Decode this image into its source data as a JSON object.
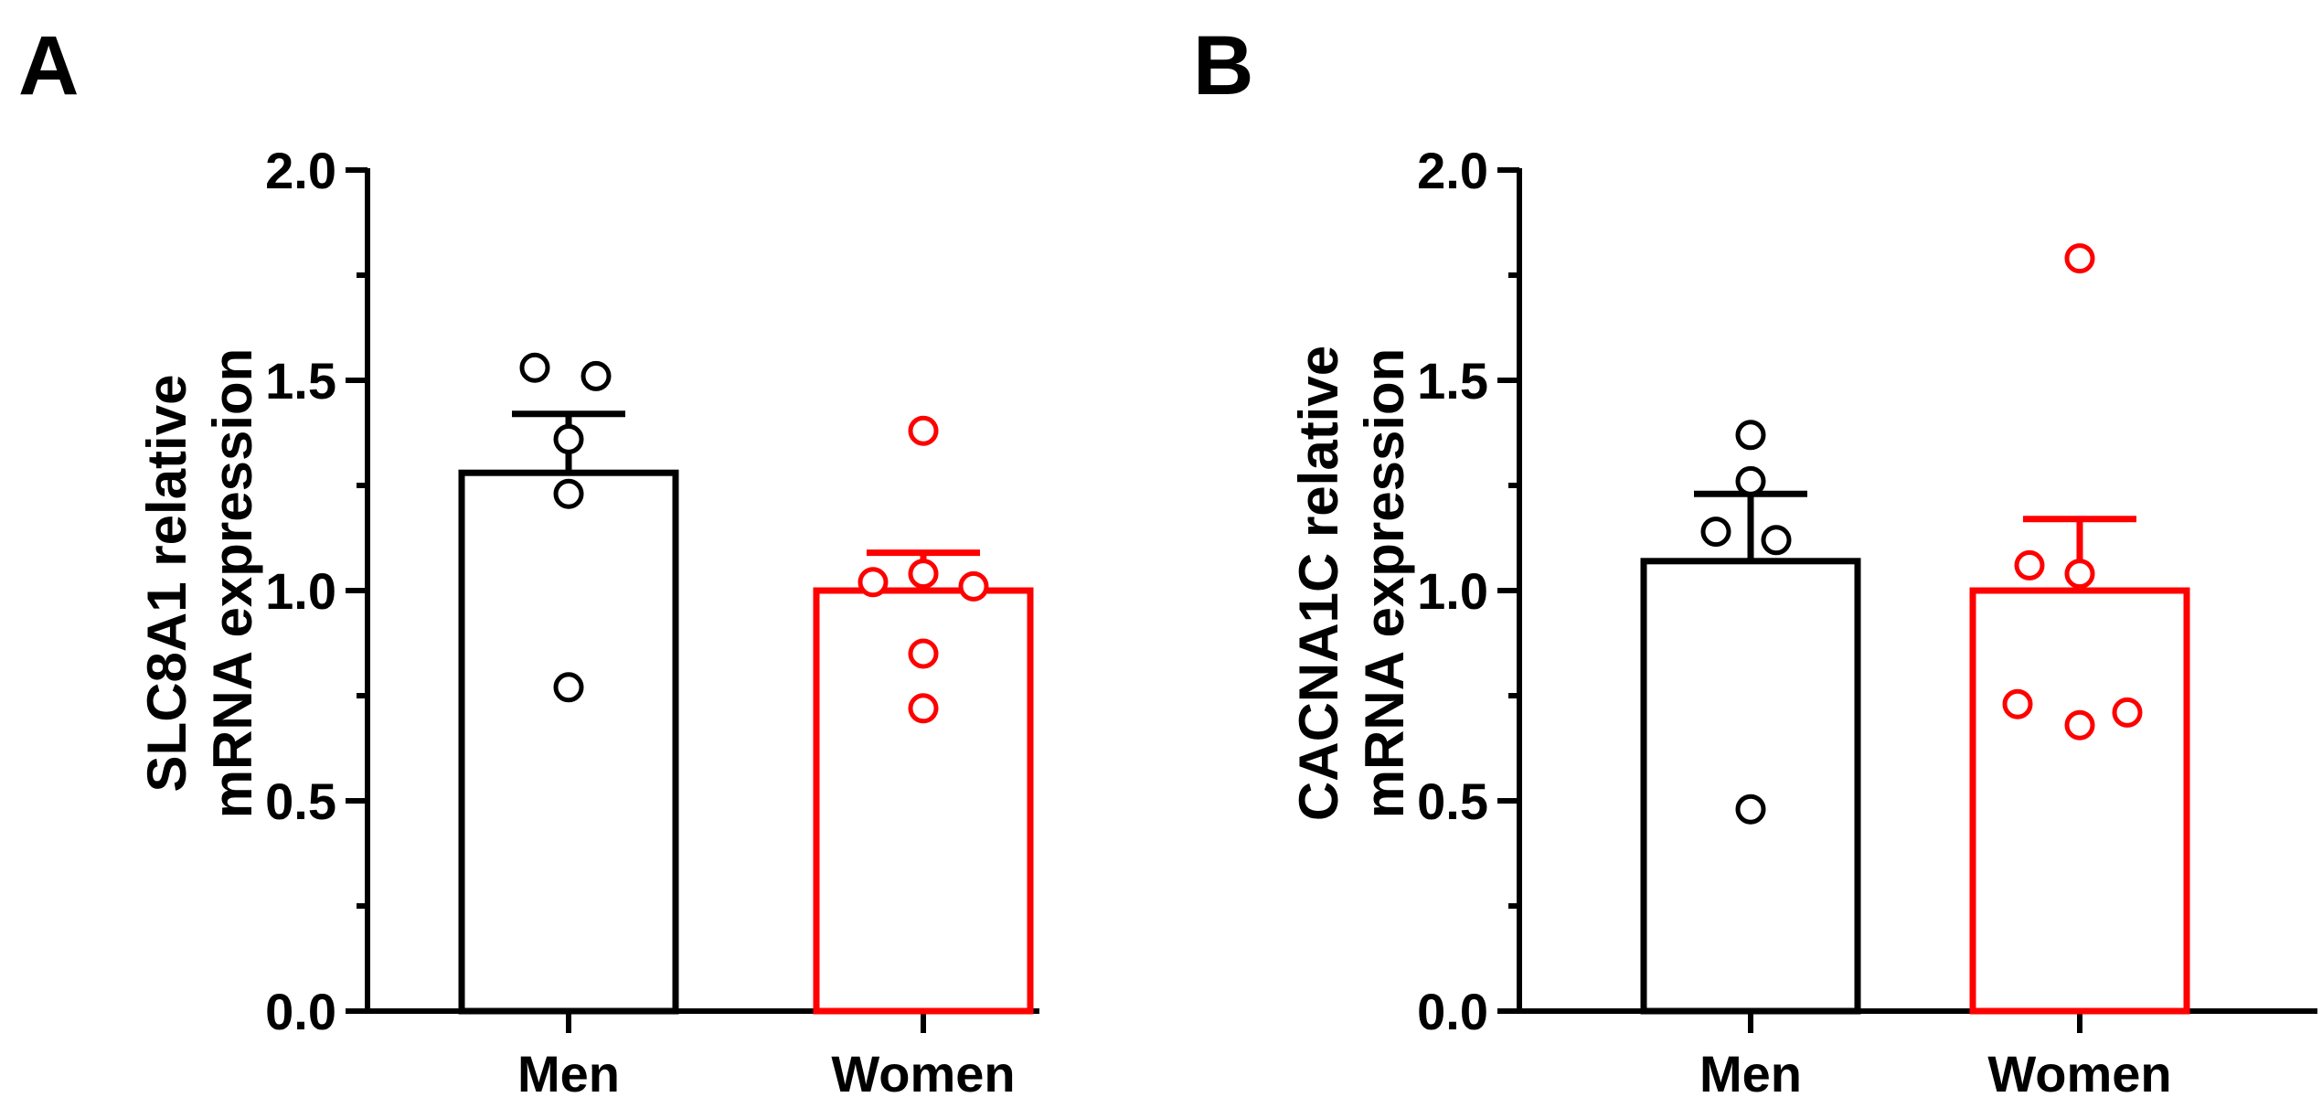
{
  "figure": {
    "panels": [
      {
        "letter": "A",
        "ylabel_line1": "SLC8A1 relative",
        "ylabel_line2": "mRNA expression"
      },
      {
        "letter": "B",
        "ylabel_line1": "CACNA1C relative",
        "ylabel_line2": "mRNA expression"
      }
    ]
  },
  "colors": {
    "men": "#000000",
    "women": "#ff0000",
    "axis": "#000000"
  },
  "chart_data": [
    {
      "type": "bar",
      "panel": "A",
      "title": "",
      "ylabel": "SLC8A1 relative mRNA expression",
      "categories": [
        "Men",
        "Women"
      ],
      "values": [
        1.28,
        1.0
      ],
      "error": [
        0.14,
        0.09
      ],
      "points": [
        [
          1.53,
          1.51,
          1.36,
          1.23,
          0.77
        ],
        [
          1.38,
          1.02,
          1.04,
          1.01,
          0.85,
          0.72
        ]
      ],
      "ylim": [
        0,
        2.0
      ],
      "yticks": [
        0.0,
        0.5,
        1.0,
        1.5,
        2.0
      ],
      "ytick_labels": [
        "0.0",
        "0.5",
        "1.0",
        "1.5",
        "2.0"
      ],
      "minor_ticks": [
        0.25,
        0.75,
        1.25,
        1.75
      ]
    },
    {
      "type": "bar",
      "panel": "B",
      "title": "",
      "ylabel": "CACNA1C relative mRNA expression",
      "categories": [
        "Men",
        "Women"
      ],
      "values": [
        1.07,
        1.0
      ],
      "error": [
        0.16,
        0.17
      ],
      "points": [
        [
          1.37,
          1.26,
          1.14,
          1.12,
          0.48
        ],
        [
          1.79,
          1.06,
          1.04,
          0.73,
          0.71,
          0.68
        ]
      ],
      "ylim": [
        0,
        2.0
      ],
      "yticks": [
        0.0,
        0.5,
        1.0,
        1.5,
        2.0
      ],
      "ytick_labels": [
        "0.0",
        "0.5",
        "1.0",
        "1.5",
        "2.0"
      ],
      "minor_ticks": [
        0.25,
        0.75,
        1.25,
        1.75
      ]
    }
  ]
}
